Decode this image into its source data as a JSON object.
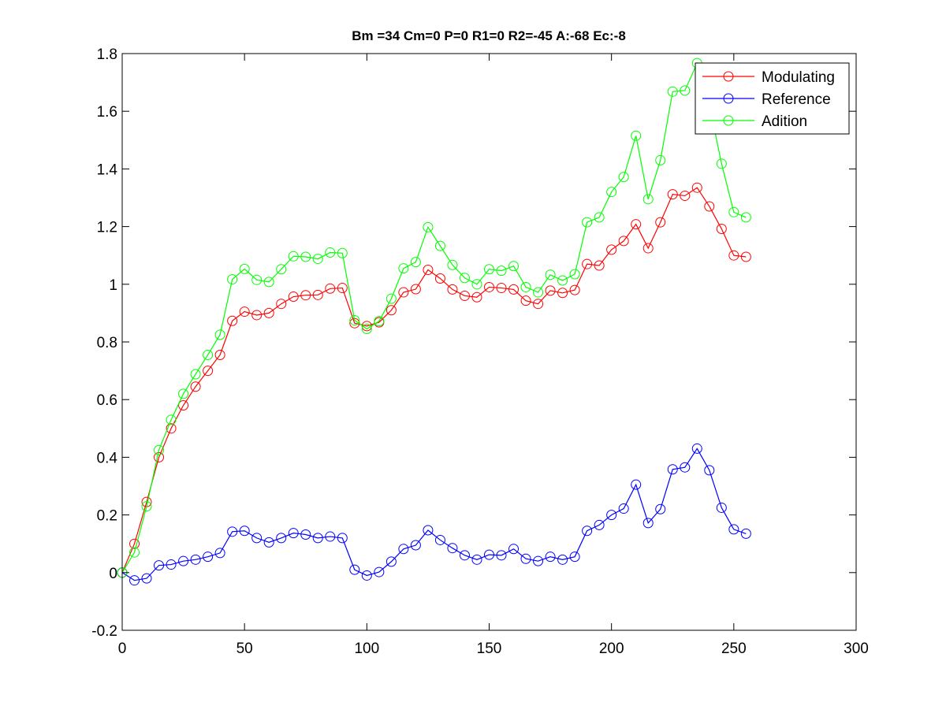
{
  "chart_data": {
    "type": "line",
    "title": "Bm =34  Cm=0  P=0  R1=0  R2=-45  A:-68  Ec:-8",
    "xlabel": "",
    "ylabel": "",
    "xlim": [
      0,
      300
    ],
    "ylim": [
      -0.2,
      1.8
    ],
    "xticks": [
      0,
      50,
      100,
      150,
      200,
      250,
      300
    ],
    "yticks": [
      -0.2,
      0,
      0.2,
      0.4,
      0.6,
      0.8,
      1,
      1.2,
      1.4,
      1.6,
      1.8
    ],
    "xtick_labels": [
      "0",
      "50",
      "100",
      "150",
      "200",
      "250",
      "300"
    ],
    "ytick_labels": [
      "-0.2",
      "0",
      "0.2",
      "0.4",
      "0.6",
      "0.8",
      "1",
      "1.2",
      "1.4",
      "1.6",
      "1.8"
    ],
    "grid": false,
    "legend_position": "top-right",
    "marker": "circle",
    "x": [
      0,
      5,
      10,
      15,
      20,
      25,
      30,
      35,
      40,
      45,
      50,
      55,
      60,
      65,
      70,
      75,
      80,
      85,
      90,
      95,
      100,
      105,
      110,
      115,
      120,
      125,
      130,
      135,
      140,
      145,
      150,
      155,
      160,
      165,
      170,
      175,
      180,
      185,
      190,
      195,
      200,
      205,
      210,
      215,
      220,
      225,
      230,
      235,
      240,
      245,
      250,
      255
    ],
    "series": [
      {
        "name": "Modulating",
        "color": "#ff0000",
        "values": [
          0.0,
          0.1,
          0.245,
          0.4,
          0.5,
          0.58,
          0.645,
          0.7,
          0.755,
          0.873,
          0.905,
          0.893,
          0.9,
          0.932,
          0.957,
          0.962,
          0.963,
          0.985,
          0.987,
          0.865,
          0.855,
          0.868,
          0.91,
          0.972,
          0.983,
          1.05,
          1.02,
          0.982,
          0.96,
          0.955,
          0.99,
          0.987,
          0.982,
          0.943,
          0.932,
          0.978,
          0.97,
          0.98,
          1.07,
          1.065,
          1.12,
          1.15,
          1.208,
          1.125,
          1.215,
          1.312,
          1.307,
          1.335,
          1.27,
          1.192,
          1.1,
          1.095
        ]
      },
      {
        "name": "Reference",
        "color": "#0000ff",
        "values": [
          0.0,
          -0.027,
          -0.02,
          0.025,
          0.028,
          0.04,
          0.045,
          0.055,
          0.068,
          0.142,
          0.145,
          0.12,
          0.105,
          0.12,
          0.137,
          0.132,
          0.12,
          0.125,
          0.12,
          0.01,
          -0.01,
          0.002,
          0.038,
          0.082,
          0.095,
          0.147,
          0.113,
          0.085,
          0.06,
          0.045,
          0.062,
          0.06,
          0.082,
          0.048,
          0.04,
          0.055,
          0.045,
          0.055,
          0.145,
          0.165,
          0.2,
          0.222,
          0.305,
          0.172,
          0.22,
          0.358,
          0.365,
          0.43,
          0.355,
          0.225,
          0.15,
          0.135
        ]
      },
      {
        "name": "Adition",
        "color": "#00ff00",
        "values": [
          0.0,
          0.07,
          0.23,
          0.425,
          0.53,
          0.62,
          0.688,
          0.755,
          0.825,
          1.017,
          1.053,
          1.015,
          1.008,
          1.052,
          1.097,
          1.095,
          1.088,
          1.11,
          1.108,
          0.875,
          0.845,
          0.872,
          0.95,
          1.055,
          1.077,
          1.198,
          1.133,
          1.067,
          1.022,
          1.0,
          1.052,
          1.047,
          1.063,
          0.99,
          0.972,
          1.033,
          1.013,
          1.035,
          1.215,
          1.232,
          1.32,
          1.372,
          1.515,
          1.295,
          1.43,
          1.668,
          1.672,
          1.767,
          1.622,
          1.418,
          1.25,
          1.232
        ]
      }
    ]
  }
}
